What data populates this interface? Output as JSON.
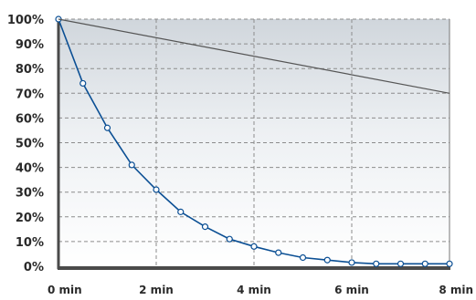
{
  "chart_data": {
    "type": "line",
    "title": "",
    "xlabel": "",
    "ylabel": "",
    "xlim": [
      0,
      8
    ],
    "ylim": [
      0,
      100
    ],
    "grid": true,
    "x_ticks": [
      {
        "value": 0,
        "label": "0  min"
      },
      {
        "value": 2,
        "label": "2  min"
      },
      {
        "value": 4,
        "label": "4  min"
      },
      {
        "value": 6,
        "label": "6  min"
      },
      {
        "value": 8,
        "label": "8  min"
      }
    ],
    "y_ticks": [
      {
        "value": 0,
        "label": "0%"
      },
      {
        "value": 10,
        "label": "10%"
      },
      {
        "value": 20,
        "label": "20%"
      },
      {
        "value": 30,
        "label": "30%"
      },
      {
        "value": 40,
        "label": "40%"
      },
      {
        "value": 50,
        "label": "50%"
      },
      {
        "value": 60,
        "label": "60%"
      },
      {
        "value": 70,
        "label": "70%"
      },
      {
        "value": 80,
        "label": "80%"
      },
      {
        "value": 90,
        "label": "90%"
      },
      {
        "value": 100,
        "label": "100%"
      }
    ],
    "series": [
      {
        "color": "#0b4f94",
        "markers": true,
        "x": [
          0,
          0.5,
          1,
          1.5,
          2,
          2.5,
          3,
          3.5,
          4,
          4.5,
          5,
          5.5,
          6,
          6.5,
          7,
          7.5,
          8
        ],
        "y": [
          100,
          74,
          56,
          41,
          31,
          22,
          16,
          11,
          8,
          5.5,
          3.5,
          2.5,
          1.5,
          1,
          1,
          1,
          1
        ]
      },
      {
        "color": "#555555",
        "markers": false,
        "x": [
          0,
          8
        ],
        "y": [
          100,
          70
        ]
      }
    ]
  }
}
